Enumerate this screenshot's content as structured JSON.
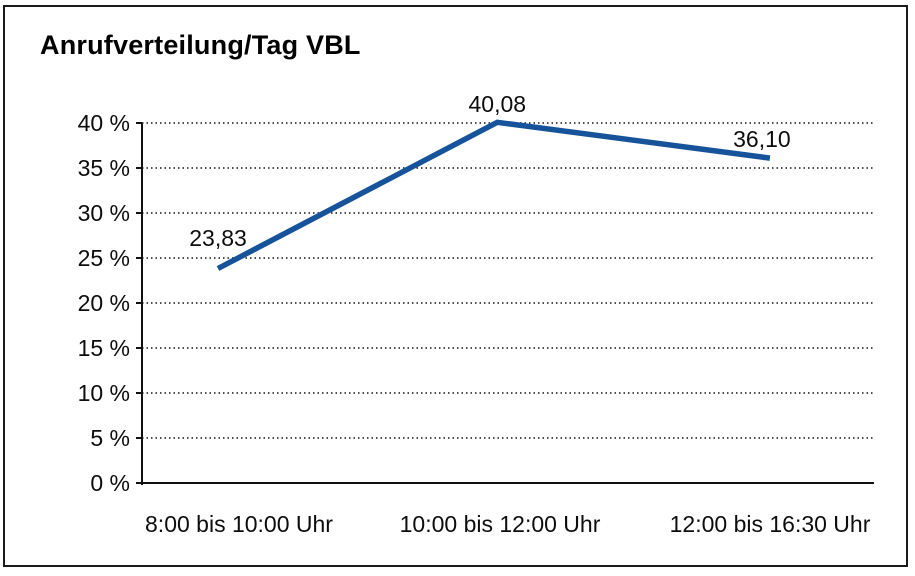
{
  "chart_data": {
    "type": "line",
    "title": "Anrufverteilung/Tag VBL",
    "categories": [
      "8:00 bis 10:00 Uhr",
      "10:00 bis 12:00 Uhr",
      "12:00 bis 16:30 Uhr"
    ],
    "series": [
      {
        "name": "Anrufverteilung/Tag VBL",
        "values": [
          23.83,
          40.08,
          36.1
        ]
      }
    ],
    "data_labels": [
      "23,83",
      "40,08",
      "36,10"
    ],
    "xlabel": "",
    "ylabel": "",
    "ylim": [
      0,
      40
    ],
    "ytick_step": 5,
    "ytick_labels": [
      "0 %",
      "5 %",
      "10 %",
      "15 %",
      "20 %",
      "25 %",
      "30 %",
      "35 %",
      "40 %"
    ],
    "grid": "horizontal-dotted",
    "legend_position": "none",
    "line_color": "#17539b",
    "text_color": "#111111",
    "background": "#ffffff",
    "border_color": "#1a1a1a"
  }
}
